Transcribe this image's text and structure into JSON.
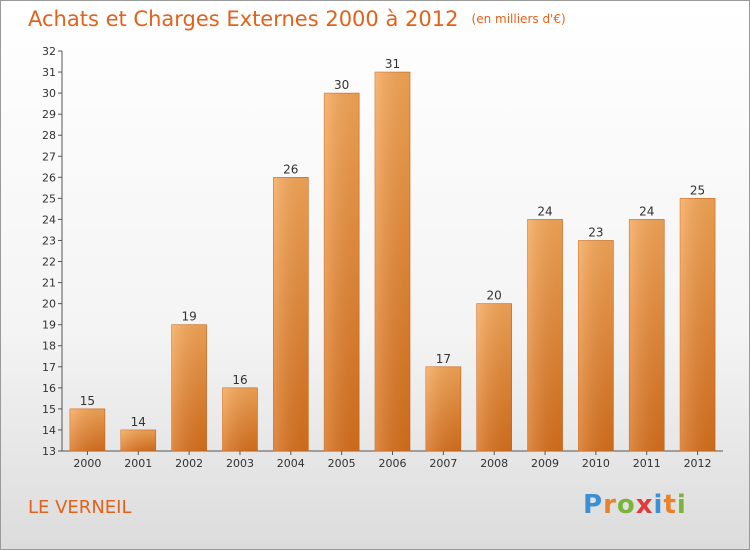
{
  "chart_data": {
    "type": "bar",
    "title": "Achats et Charges Externes 2000 à 2012",
    "subtitle": "(en milliers d'€)",
    "categories": [
      "2000",
      "2001",
      "2002",
      "2003",
      "2004",
      "2005",
      "2006",
      "2007",
      "2008",
      "2009",
      "2010",
      "2011",
      "2012"
    ],
    "values": [
      15,
      14,
      19,
      16,
      26,
      30,
      31,
      17,
      20,
      24,
      23,
      24,
      25
    ],
    "ylim": [
      13,
      32
    ],
    "yticks": [
      13,
      14,
      15,
      16,
      17,
      18,
      19,
      20,
      21,
      22,
      23,
      24,
      25,
      26,
      27,
      28,
      29,
      30,
      31,
      32
    ],
    "xlabel": "",
    "ylabel": "",
    "grid": false,
    "bar_color_top": "#f7a757",
    "bar_color_bottom": "#d9701c",
    "label_color": "#333333"
  },
  "location": "LE VERNEIL",
  "logo": {
    "text": "Proxiti",
    "letters": [
      "P",
      "r",
      "o",
      "x",
      "i",
      "t",
      "i"
    ],
    "letter_colors": [
      "#3b8fd6",
      "#e9822c",
      "#7ab53a",
      "#e03b3b",
      "#3b8fd6",
      "#e9822c",
      "#7ab53a"
    ]
  }
}
